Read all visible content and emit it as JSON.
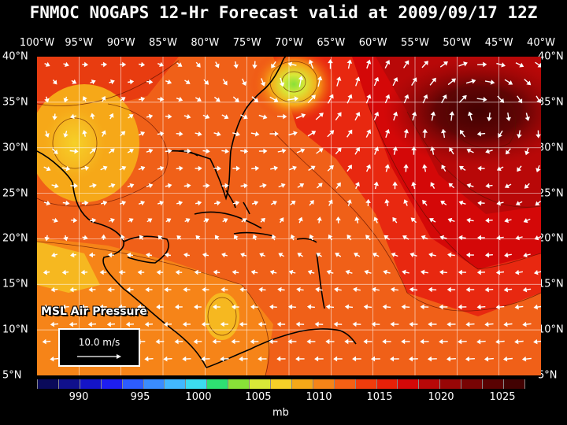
{
  "title": "FNMOC NOGAPS 12-Hr Forecast valid at 2009/09/17 12Z",
  "lon_labels": [
    "100°W",
    "95°W",
    "90°W",
    "85°W",
    "80°W",
    "75°W",
    "70°W",
    "65°W",
    "60°W",
    "55°W",
    "50°W",
    "45°W",
    "40°W"
  ],
  "lat_labels": [
    "40°N",
    "35°N",
    "30°N",
    "25°N",
    "20°N",
    "15°N",
    "10°N",
    "5°N"
  ],
  "field_label": "MSL Air Pressure",
  "scale_label": "10.0 m/s",
  "colorbar": {
    "colors": [
      "#0a0a5a",
      "#10108c",
      "#1414c8",
      "#1e1ef0",
      "#2d5cff",
      "#3a8cff",
      "#42b8ff",
      "#3cdcf0",
      "#2ee072",
      "#88e038",
      "#d8e838",
      "#f6d028",
      "#f6a818",
      "#f68418",
      "#f66014",
      "#f03c0c",
      "#e82008",
      "#d40808",
      "#b80808",
      "#980606",
      "#780404",
      "#5a0202",
      "#420202"
    ],
    "labels": [
      "990",
      "995",
      "1000",
      "1005",
      "1010",
      "1015",
      "1020",
      "1025"
    ],
    "unit": "mb"
  }
}
